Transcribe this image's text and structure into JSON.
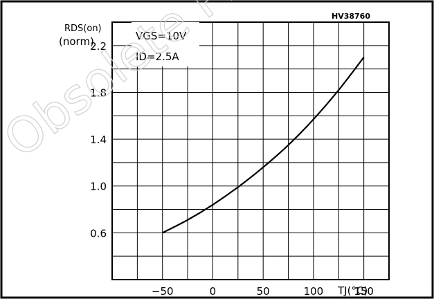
{
  "figure_code": "HV38760",
  "watermark": "Obsolete Product(s)",
  "chart_data": {
    "type": "line",
    "y_axis_label_line1": "RDS(on)",
    "y_axis_label_line2": "(norm)",
    "x_axis_label": "TJ(°C)",
    "conditions": [
      "VGS=10V",
      "ID=2.5A"
    ],
    "x_ticks": [
      -50,
      0,
      50,
      100,
      150
    ],
    "x_tick_labels": [
      "−50",
      "0",
      "50",
      "100",
      "150"
    ],
    "y_ticks": [
      0.6,
      1.0,
      1.4,
      1.8,
      2.2
    ],
    "y_tick_labels": [
      "0.6",
      "1.0",
      "1.4",
      "1.8",
      "2.2"
    ],
    "xlim": [
      -100,
      175
    ],
    "ylim": [
      0.2,
      2.4
    ],
    "grid": true,
    "series": [
      {
        "x": [
          -50,
          -25,
          0,
          25,
          50,
          75,
          100,
          125,
          150
        ],
        "y": [
          0.6,
          0.71,
          0.84,
          0.99,
          1.16,
          1.35,
          1.57,
          1.82,
          2.1
        ]
      }
    ]
  }
}
